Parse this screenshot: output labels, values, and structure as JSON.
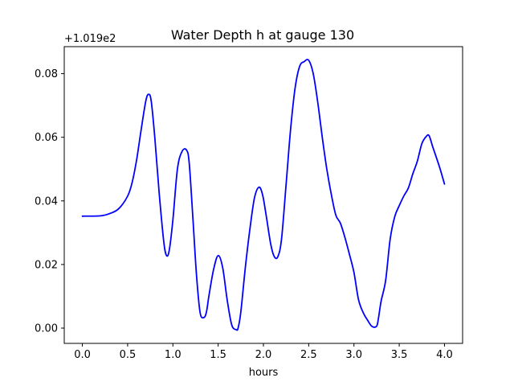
{
  "chart_data": {
    "type": "line",
    "title": "Water Depth h at gauge 130",
    "xlabel": "hours",
    "ylabel": "",
    "offset_label": "+1.019e2",
    "xlim": [
      -0.2,
      4.2
    ],
    "ylim": [
      -0.0048,
      0.0885
    ],
    "xticks": [
      0.0,
      0.5,
      1.0,
      1.5,
      2.0,
      2.5,
      3.0,
      3.5,
      4.0
    ],
    "xtick_labels": [
      "0.0",
      "0.5",
      "1.0",
      "1.5",
      "2.0",
      "2.5",
      "3.0",
      "3.5",
      "4.0"
    ],
    "yticks": [
      0.0,
      0.02,
      0.04,
      0.06,
      0.08
    ],
    "ytick_labels": [
      "0.00",
      "0.02",
      "0.04",
      "0.06",
      "0.08"
    ],
    "grid": false,
    "series": [
      {
        "color": "#0000ff",
        "x": [
          0.0,
          0.2,
          0.3,
          0.4,
          0.5,
          0.55,
          0.6,
          0.65,
          0.7,
          0.73,
          0.76,
          0.8,
          0.85,
          0.9,
          0.93,
          0.96,
          1.0,
          1.05,
          1.1,
          1.15,
          1.18,
          1.22,
          1.26,
          1.3,
          1.34,
          1.37,
          1.4,
          1.45,
          1.5,
          1.55,
          1.6,
          1.65,
          1.7,
          1.72,
          1.75,
          1.8,
          1.85,
          1.9,
          1.95,
          1.99,
          2.03,
          2.08,
          2.12,
          2.16,
          2.2,
          2.25,
          2.3,
          2.35,
          2.4,
          2.45,
          2.5,
          2.55,
          2.6,
          2.65,
          2.7,
          2.75,
          2.8,
          2.85,
          2.9,
          2.95,
          3.0,
          3.05,
          3.1,
          3.15,
          3.2,
          3.25,
          3.27,
          3.3,
          3.35,
          3.4,
          3.45,
          3.5,
          3.55,
          3.6,
          3.65,
          3.7,
          3.75,
          3.8,
          3.83,
          3.87,
          3.9,
          3.95,
          4.0
        ],
        "y": [
          0.0352,
          0.0353,
          0.036,
          0.0375,
          0.0415,
          0.0458,
          0.053,
          0.0625,
          0.0713,
          0.0735,
          0.0715,
          0.06,
          0.042,
          0.027,
          0.0228,
          0.0245,
          0.034,
          0.05,
          0.0555,
          0.056,
          0.052,
          0.035,
          0.017,
          0.005,
          0.0033,
          0.005,
          0.0105,
          0.0185,
          0.0228,
          0.019,
          0.0088,
          0.001,
          -0.0005,
          0.0,
          0.005,
          0.019,
          0.031,
          0.0408,
          0.0443,
          0.042,
          0.0355,
          0.0265,
          0.0225,
          0.0225,
          0.028,
          0.045,
          0.0625,
          0.0755,
          0.0823,
          0.0838,
          0.0842,
          0.08,
          0.071,
          0.06,
          0.05,
          0.042,
          0.0355,
          0.033,
          0.0285,
          0.0232,
          0.0175,
          0.009,
          0.005,
          0.0025,
          0.0005,
          0.0006,
          0.003,
          0.0085,
          0.015,
          0.028,
          0.035,
          0.0385,
          0.0415,
          0.044,
          0.0485,
          0.0525,
          0.058,
          0.0603,
          0.0605,
          0.057,
          0.0545,
          0.0502,
          0.0453
        ]
      }
    ]
  }
}
